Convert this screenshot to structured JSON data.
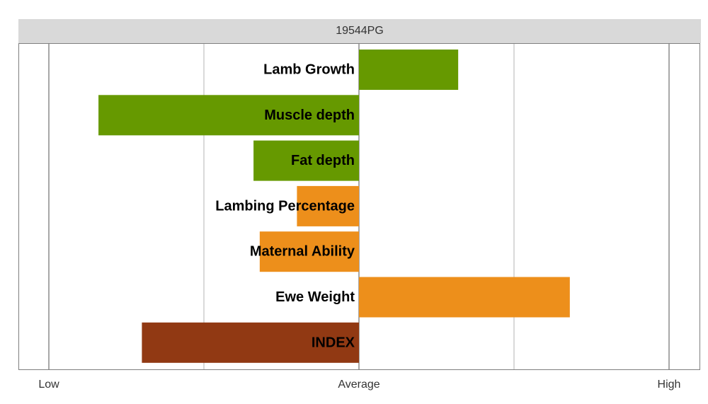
{
  "chart_data": {
    "type": "bar",
    "orientation": "horizontal",
    "facet_title": "19544PG",
    "categories": [
      "Lamb Growth",
      "Muscle depth",
      "Fat depth",
      "Lambing Percentage",
      "Maternal Ability",
      "Ewe Weight",
      "INDEX"
    ],
    "values": [
      0.32,
      -0.84,
      -0.34,
      -0.2,
      -0.32,
      0.68,
      -0.7
    ],
    "colors": [
      "#669900",
      "#669900",
      "#669900",
      "#ed8f1b",
      "#ed8f1b",
      "#ed8f1b",
      "#913913"
    ],
    "xlim": [
      -1,
      1
    ],
    "x_ticks": [
      {
        "value": -1,
        "label": "Low"
      },
      {
        "value": 0,
        "label": "Average"
      },
      {
        "value": 1,
        "label": "High"
      }
    ],
    "x_minor_ticks": [
      -0.5,
      0.5
    ],
    "xlabel": "",
    "ylabel": "",
    "grid": true,
    "legend": "none"
  }
}
